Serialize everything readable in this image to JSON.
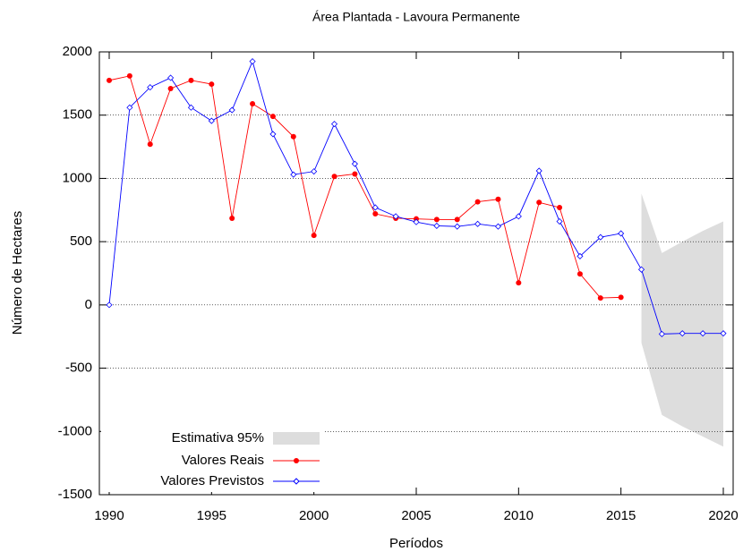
{
  "chart_data": {
    "type": "line",
    "title": "Área Plantada - Lavoura Permanente",
    "xlabel": "Períodos",
    "ylabel": "Número de Hectares",
    "xlim": [
      1990,
      2020
    ],
    "xticks": [
      1990,
      1995,
      2000,
      2005,
      2010,
      2015,
      2020
    ],
    "ylim": [
      -1500,
      2000
    ],
    "yticks": [
      -1500,
      -1000,
      -500,
      0,
      500,
      1000,
      1500,
      2000
    ],
    "grid": true,
    "legend": "lower left",
    "band": {
      "name": "Estimativa 95%",
      "color": "#dddddd",
      "x": [
        2016,
        2017,
        2018,
        2019,
        2020
      ],
      "upper": [
        880,
        410,
        500,
        585,
        660
      ],
      "lower": [
        -300,
        -870,
        -960,
        -1040,
        -1120
      ]
    },
    "series": [
      {
        "name": "Valores Reais",
        "color": "#ff0000",
        "marker": "dot",
        "x": [
          1990,
          1991,
          1992,
          1993,
          1994,
          1995,
          1996,
          1997,
          1998,
          1999,
          2000,
          2001,
          2002,
          2003,
          2004,
          2005,
          2006,
          2007,
          2008,
          2009,
          2010,
          2011,
          2012,
          2013,
          2014,
          2015
        ],
        "values": [
          1775,
          1810,
          1270,
          1710,
          1775,
          1745,
          685,
          1590,
          1490,
          1330,
          550,
          1015,
          1035,
          720,
          685,
          680,
          675,
          675,
          815,
          835,
          175,
          810,
          770,
          245,
          55,
          60
        ]
      },
      {
        "name": "Valores Previstos",
        "color": "#0000ff",
        "marker": "diamond",
        "x": [
          1990,
          1991,
          1992,
          1993,
          1994,
          1995,
          1996,
          1997,
          1998,
          1999,
          2000,
          2001,
          2002,
          2003,
          2004,
          2005,
          2006,
          2007,
          2008,
          2009,
          2010,
          2011,
          2012,
          2013,
          2014,
          2015,
          2016,
          2017,
          2018,
          2019,
          2020
        ],
        "values": [
          0,
          1560,
          1720,
          1795,
          1560,
          1455,
          1540,
          1925,
          1350,
          1030,
          1055,
          1430,
          1115,
          770,
          700,
          655,
          625,
          620,
          640,
          620,
          700,
          1060,
          660,
          385,
          535,
          565,
          280,
          -230,
          -225,
          -225,
          -225
        ]
      }
    ]
  }
}
